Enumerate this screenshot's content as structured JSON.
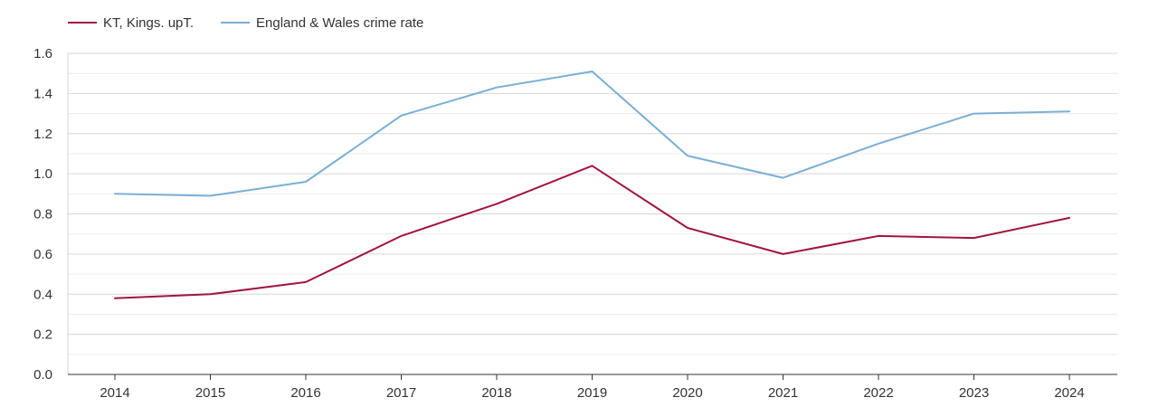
{
  "chart_data": {
    "type": "line",
    "title": "",
    "xlabel": "",
    "ylabel": "",
    "x": [
      "2014",
      "2015",
      "2016",
      "2017",
      "2018",
      "2019",
      "2020",
      "2021",
      "2022",
      "2023",
      "2024"
    ],
    "ylim": [
      0,
      1.6
    ],
    "yticks": [
      "0.0",
      "0.2",
      "0.4",
      "0.6",
      "0.8",
      "1.0",
      "1.2",
      "1.4",
      "1.6"
    ],
    "grid": true,
    "legend_position": "top-left",
    "series": [
      {
        "name": "KT, Kings. upT.",
        "color": "#a0153e",
        "values": [
          0.38,
          0.4,
          0.46,
          0.69,
          0.85,
          1.04,
          0.73,
          0.6,
          0.69,
          0.68,
          0.78
        ]
      },
      {
        "name": "England & Wales crime rate",
        "color": "#7aafd4",
        "values": [
          0.9,
          0.89,
          0.96,
          1.29,
          1.43,
          1.51,
          1.09,
          0.98,
          1.15,
          1.3,
          1.31
        ]
      }
    ]
  }
}
